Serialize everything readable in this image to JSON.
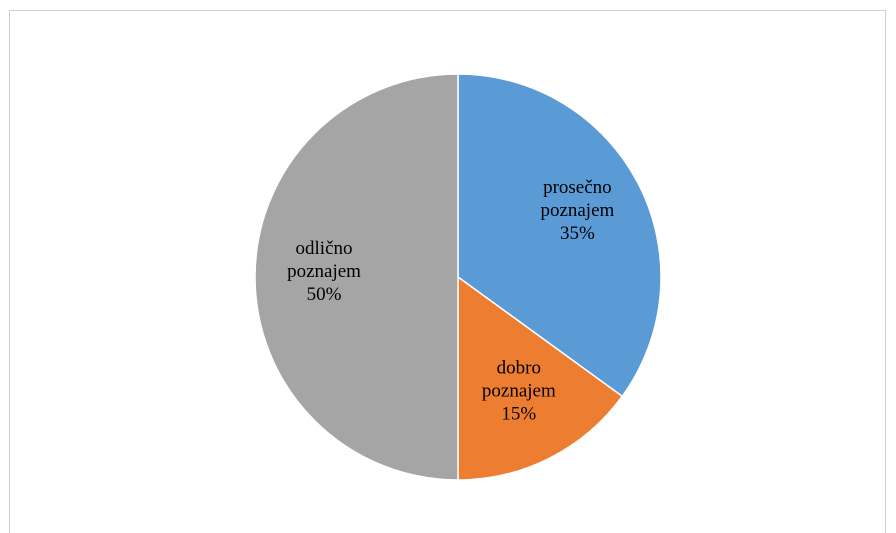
{
  "chart_data": {
    "type": "pie",
    "categories": [
      "prosečno poznajem",
      "dobro poznajem",
      "odlično poznajem"
    ],
    "values": [
      35,
      15,
      50
    ],
    "value_labels": [
      "35%",
      "15%",
      "50%"
    ],
    "colors": [
      "#5b9bd5",
      "#ed7d31",
      "#a5a5a5"
    ]
  }
}
